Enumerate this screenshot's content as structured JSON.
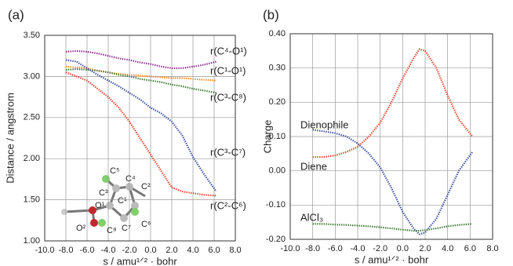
{
  "chart_data": [
    {
      "type": "line",
      "panel_label": "(a)",
      "xlabel": "s / amu¹ᐟ² · bohr",
      "ylabel": "Distance / angstrom",
      "xlim": [
        -10,
        8
      ],
      "ylim": [
        1,
        3.5
      ],
      "grid": true,
      "xticks": [
        {
          "value": -10,
          "label": "-10.0"
        },
        {
          "value": -8,
          "label": "-8.0"
        },
        {
          "value": -6,
          "label": "-6.0"
        },
        {
          "value": -4,
          "label": "-4.0"
        },
        {
          "value": -2,
          "label": "-2.0"
        },
        {
          "value": 0,
          "label": "0.0"
        },
        {
          "value": 2,
          "label": "2.0"
        },
        {
          "value": 4,
          "label": "4.0"
        },
        {
          "value": 6,
          "label": "6.0"
        },
        {
          "value": 8,
          "label": "8.0"
        }
      ],
      "yticks": [
        {
          "value": 1,
          "label": "1.00"
        },
        {
          "value": 1.5,
          "label": "1.50"
        },
        {
          "value": 2,
          "label": "2.00"
        },
        {
          "value": 2.5,
          "label": "2.50"
        },
        {
          "value": 3,
          "label": "3.00"
        },
        {
          "value": 3.5,
          "label": "3.50"
        }
      ],
      "x": [
        -8,
        -7,
        -6,
        -5,
        -4,
        -3,
        -2,
        -1,
        0,
        1,
        2,
        3,
        4,
        5,
        6.2
      ],
      "series": [
        {
          "name": "r(C⁴-O¹)",
          "color": "#8e2b8e",
          "values": [
            3.3,
            3.31,
            3.3,
            3.28,
            3.25,
            3.22,
            3.2,
            3.17,
            3.15,
            3.12,
            3.1,
            3.1,
            3.12,
            3.14,
            3.18
          ]
        },
        {
          "name": "r(C¹-O¹)",
          "color": "#f08a2a",
          "values": [
            3.12,
            3.11,
            3.1,
            3.07,
            3.05,
            3.03,
            3.02,
            3.01,
            3.0,
            2.99,
            2.98,
            2.98,
            2.97,
            2.96,
            2.95
          ]
        },
        {
          "name": "r(C³-C⁸)",
          "color": "#3e7a34",
          "values": [
            3.08,
            3.09,
            3.08,
            3.07,
            3.05,
            3.02,
            3.0,
            2.97,
            2.95,
            2.93,
            2.9,
            2.88,
            2.85,
            2.83,
            2.8
          ]
        },
        {
          "name": "r(C³-C⁷)",
          "color": "#3a4fa0",
          "values": [
            3.2,
            3.18,
            3.1,
            3.02,
            2.95,
            2.88,
            2.8,
            2.72,
            2.62,
            2.55,
            2.45,
            2.28,
            2.02,
            1.82,
            1.6
          ]
        },
        {
          "name": "r(C²-C⁶)",
          "color": "#e8432a",
          "values": [
            3.05,
            3.0,
            2.95,
            2.85,
            2.75,
            2.62,
            2.45,
            2.25,
            2.05,
            1.85,
            1.65,
            1.6,
            1.58,
            1.56,
            1.55
          ]
        }
      ],
      "inset_labels": [
        "C⁵",
        "C⁴",
        "C³",
        "C²",
        "C¹",
        "O¹",
        "O²",
        "C⁸",
        "C⁷",
        "C⁶"
      ]
    },
    {
      "type": "line",
      "panel_label": "(b)",
      "xlabel": "s / amu¹ᐟ² · bohr",
      "ylabel": "Charge",
      "xlim": [
        -10,
        8
      ],
      "ylim": [
        -0.2,
        0.4
      ],
      "grid": true,
      "xticks": [
        {
          "value": -10,
          "label": "-10.0"
        },
        {
          "value": -8,
          "label": "-8.0"
        },
        {
          "value": -6,
          "label": "-6.0"
        },
        {
          "value": -4,
          "label": "-4.0"
        },
        {
          "value": -2,
          "label": "-2.0"
        },
        {
          "value": 0,
          "label": "0.0"
        },
        {
          "value": 2,
          "label": "2.0"
        },
        {
          "value": 4,
          "label": "4.0"
        },
        {
          "value": 6,
          "label": "6.0"
        },
        {
          "value": 8,
          "label": "8.0"
        }
      ],
      "yticks": [
        {
          "value": -0.2,
          "label": "-0.20"
        },
        {
          "value": -0.1,
          "label": "-0.10"
        },
        {
          "value": 0,
          "label": "0.00"
        },
        {
          "value": 0.1,
          "label": "0.10"
        },
        {
          "value": 0.2,
          "label": "0.20"
        },
        {
          "value": 0.3,
          "label": "0.30"
        },
        {
          "value": 0.4,
          "label": "0.40"
        }
      ],
      "x": [
        -8,
        -7,
        -6,
        -5,
        -4,
        -3,
        -2,
        -1,
        0,
        1,
        1.5,
        2,
        3,
        4,
        5,
        6.2
      ],
      "series": [
        {
          "name": "Dienophile",
          "color": "#3a4fa0",
          "values": [
            0.12,
            0.115,
            0.11,
            0.1,
            0.08,
            0.05,
            0.01,
            -0.05,
            -0.12,
            -0.17,
            -0.185,
            -0.18,
            -0.14,
            -0.07,
            0.0,
            0.055
          ]
        },
        {
          "name": "Diene",
          "color": "#e8432a",
          "values": [
            0.04,
            0.04,
            0.045,
            0.055,
            0.07,
            0.1,
            0.14,
            0.2,
            0.27,
            0.33,
            0.355,
            0.35,
            0.3,
            0.22,
            0.15,
            0.1
          ]
        },
        {
          "name": "AlCl₃",
          "color": "#3e7a34",
          "values": [
            -0.155,
            -0.155,
            -0.157,
            -0.158,
            -0.16,
            -0.162,
            -0.165,
            -0.168,
            -0.172,
            -0.175,
            -0.175,
            -0.173,
            -0.168,
            -0.162,
            -0.158,
            -0.155
          ]
        }
      ]
    }
  ]
}
